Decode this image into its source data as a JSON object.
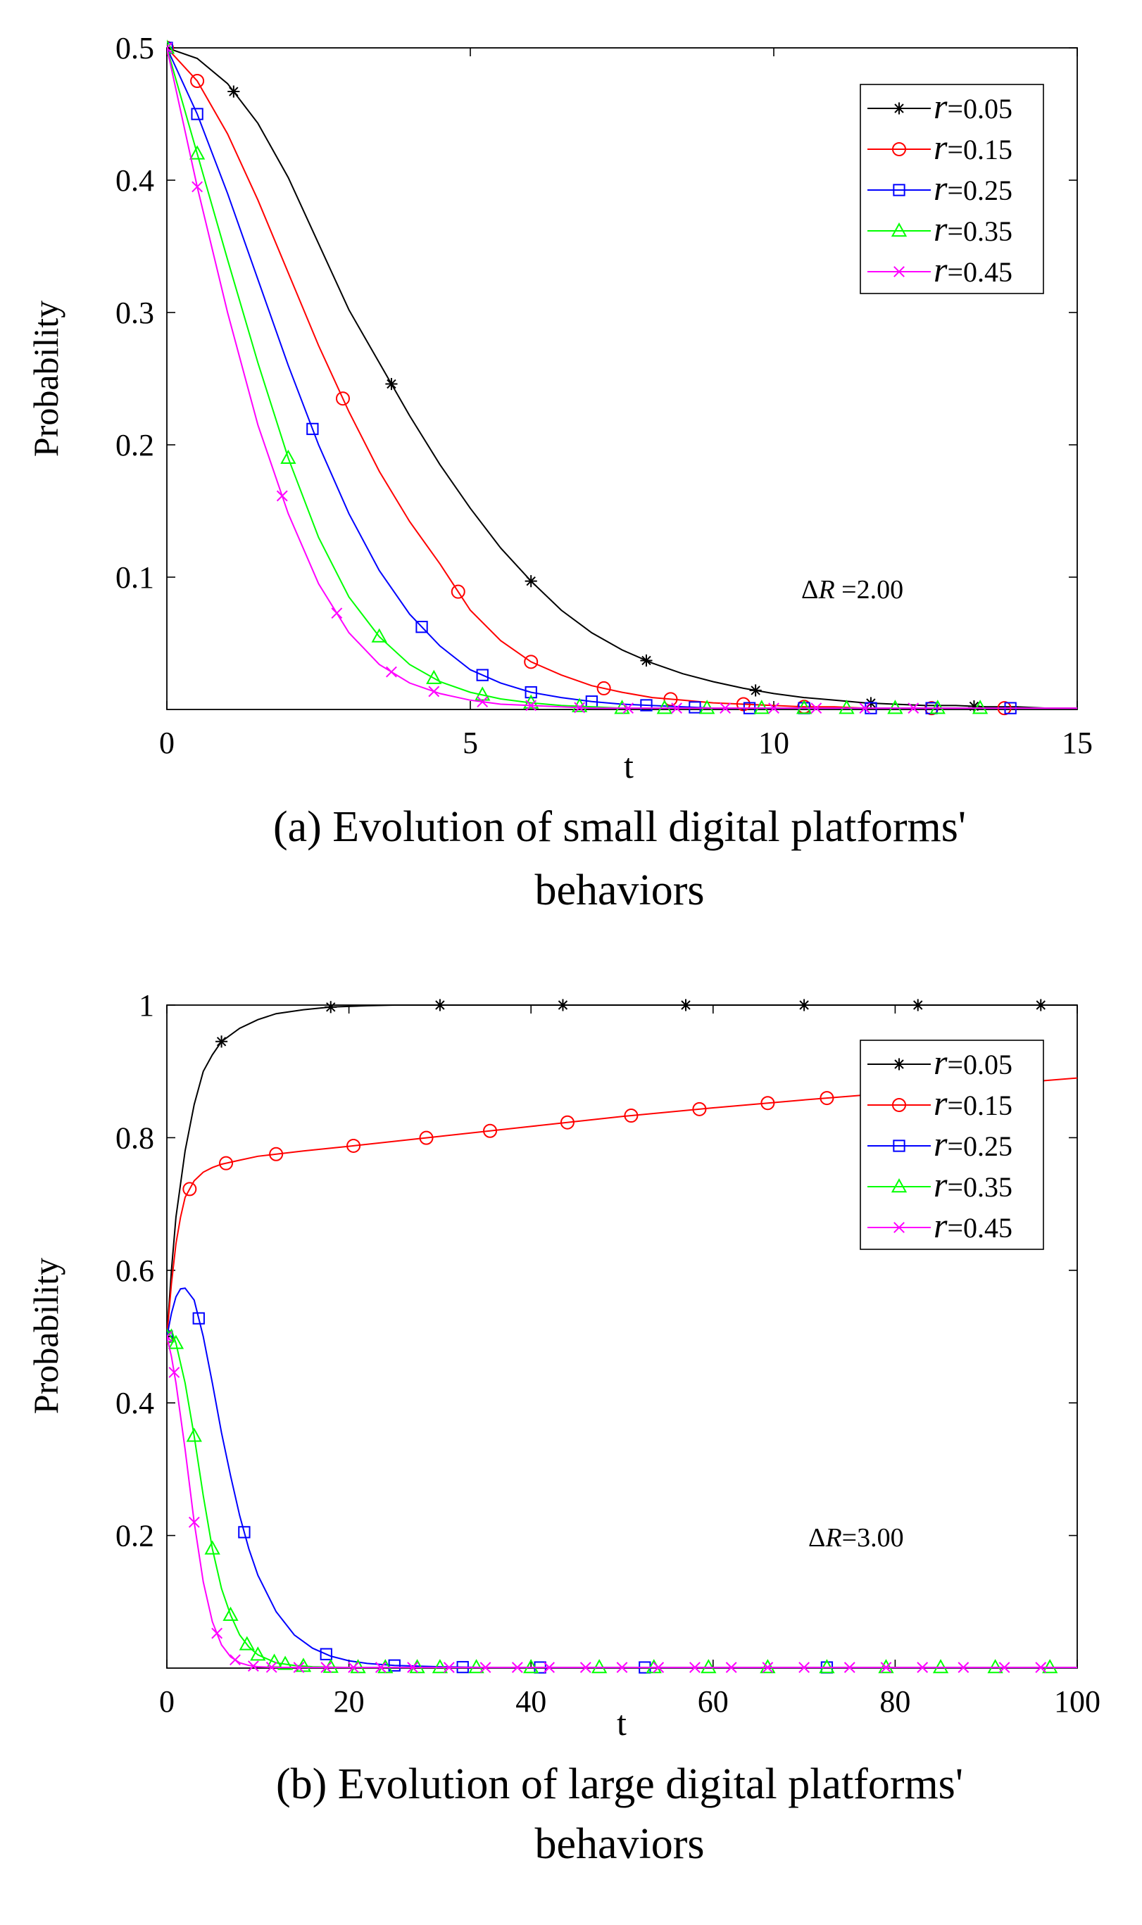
{
  "chart_data": [
    {
      "type": "line",
      "panel_id": "a",
      "caption": [
        "(a) Evolution of small digital platforms'",
        "behaviors"
      ],
      "xlabel": "t",
      "ylabel": "Probability",
      "xlim": [
        0,
        15
      ],
      "ylim": [
        0,
        0.5
      ],
      "xticks": [
        0,
        5,
        10,
        15
      ],
      "yticks": [
        0.1,
        0.2,
        0.3,
        0.4,
        0.5
      ],
      "annotation": {
        "delta": "Δ",
        "var": "R",
        "value": " =2.00"
      },
      "legend_position": "top-right",
      "series": [
        {
          "name": "r=0.05",
          "param": "r",
          "value": "=0.05",
          "color": "#000000",
          "marker": "asterisk",
          "x": [
            0,
            0.5,
            1,
            1.5,
            2,
            2.5,
            3,
            3.5,
            4,
            4.5,
            5,
            5.5,
            6,
            6.5,
            7,
            7.5,
            8,
            8.5,
            9,
            9.5,
            10,
            10.5,
            11,
            11.5,
            12,
            12.5,
            13,
            13.5,
            14,
            14.5,
            15
          ],
          "y": [
            0.5,
            0.492,
            0.473,
            0.443,
            0.402,
            0.352,
            0.302,
            0.262,
            0.222,
            0.185,
            0.152,
            0.122,
            0.097,
            0.075,
            0.058,
            0.045,
            0.035,
            0.027,
            0.021,
            0.016,
            0.012,
            0.009,
            0.007,
            0.005,
            0.004,
            0.003,
            0.003,
            0.002,
            0.002,
            0.001,
            0.001
          ],
          "marker_x": [
            0,
            1.1,
            3.7,
            6.0,
            7.9,
            9.7,
            11.6,
            13.3
          ]
        },
        {
          "name": "r=0.15",
          "param": "r",
          "value": "=0.15",
          "color": "#ff0000",
          "marker": "circle",
          "x": [
            0,
            0.5,
            1,
            1.5,
            2,
            2.5,
            3,
            3.5,
            4,
            4.5,
            5,
            5.5,
            6,
            6.5,
            7,
            7.5,
            8,
            8.5,
            9,
            9.5,
            10,
            10.5,
            11,
            11.5,
            12,
            12.5,
            13,
            13.5,
            14,
            14.5,
            15
          ],
          "y": [
            0.5,
            0.475,
            0.435,
            0.385,
            0.33,
            0.275,
            0.225,
            0.18,
            0.142,
            0.11,
            0.075,
            0.052,
            0.036,
            0.026,
            0.018,
            0.013,
            0.009,
            0.007,
            0.005,
            0.004,
            0.003,
            0.002,
            0.002,
            0.001,
            0.001,
            0.001,
            0.001,
            0.001,
            0.001,
            0.001,
            0.001
          ],
          "marker_x": [
            0,
            0.5,
            2.9,
            4.8,
            6.0,
            7.2,
            8.3,
            9.5,
            10.5,
            12.6,
            13.8
          ]
        },
        {
          "name": "r=0.25",
          "param": "r",
          "value": "=0.25",
          "color": "#0000ff",
          "marker": "square",
          "x": [
            0,
            0.5,
            1,
            1.5,
            2,
            2.5,
            3,
            3.5,
            4,
            4.5,
            5,
            5.5,
            6,
            6.5,
            7,
            7.5,
            8,
            8.5,
            9,
            9.5,
            10,
            10.5,
            11,
            11.5,
            12,
            12.5,
            13,
            13.5,
            14,
            14.5,
            15
          ],
          "y": [
            0.5,
            0.45,
            0.39,
            0.325,
            0.26,
            0.2,
            0.148,
            0.105,
            0.072,
            0.048,
            0.03,
            0.02,
            0.013,
            0.009,
            0.006,
            0.004,
            0.003,
            0.002,
            0.001,
            0.001,
            0.001,
            0.001,
            0.001,
            0.001,
            0.001,
            0.001,
            0.001,
            0.001,
            0.001,
            0.001,
            0.001
          ],
          "marker_x": [
            0,
            0.5,
            2.4,
            4.2,
            5.2,
            6.0,
            7.0,
            7.9,
            8.7,
            9.6,
            10.5,
            11.6,
            12.6,
            13.9
          ]
        },
        {
          "name": "r=0.35",
          "param": "r",
          "value": "=0.35",
          "color": "#00ff00",
          "marker": "triangle",
          "x": [
            0,
            0.5,
            1,
            1.5,
            2,
            2.5,
            3,
            3.5,
            4,
            4.5,
            5,
            5.5,
            6,
            6.5,
            7,
            7.5,
            8,
            8.5,
            9,
            9.5,
            10,
            10.5,
            11,
            11.5,
            12,
            12.5,
            13,
            13.5,
            14,
            14.5,
            15
          ],
          "y": [
            0.5,
            0.42,
            0.34,
            0.262,
            0.19,
            0.13,
            0.085,
            0.055,
            0.034,
            0.021,
            0.013,
            0.008,
            0.005,
            0.003,
            0.002,
            0.001,
            0.001,
            0.001,
            0.001,
            0.001,
            0.001,
            0.001,
            0.001,
            0.001,
            0.001,
            0.001,
            0.001,
            0.001,
            0.001,
            0.001,
            0.001
          ],
          "marker_x": [
            0,
            0.5,
            2.0,
            3.5,
            4.4,
            5.2,
            6.0,
            6.8,
            7.5,
            8.2,
            8.9,
            9.8,
            10.5,
            11.2,
            12.0,
            12.7,
            13.4
          ]
        },
        {
          "name": "r=0.45",
          "param": "r",
          "value": "=0.45",
          "color": "#ff00ff",
          "marker": "cross",
          "x": [
            0,
            0.5,
            1,
            1.5,
            2,
            2.5,
            3,
            3.5,
            4,
            4.5,
            5,
            5.5,
            6,
            6.5,
            7,
            7.5,
            8,
            8.5,
            9,
            9.5,
            10,
            10.5,
            11,
            11.5,
            12,
            12.5,
            13,
            13.5,
            14,
            14.5,
            15
          ],
          "y": [
            0.5,
            0.395,
            0.3,
            0.215,
            0.148,
            0.095,
            0.058,
            0.034,
            0.02,
            0.012,
            0.007,
            0.004,
            0.003,
            0.002,
            0.001,
            0.001,
            0.001,
            0.001,
            0.001,
            0.001,
            0.001,
            0.001,
            0.001,
            0.001,
            0.001,
            0.001,
            0.001,
            0.001,
            0.001,
            0.001,
            0.001
          ],
          "marker_x": [
            0,
            0.5,
            1.9,
            2.8,
            3.7,
            4.4,
            5.2,
            6.0,
            6.8,
            7.6,
            8.4,
            9.2,
            10.0,
            10.7,
            11.5,
            12.3
          ]
        }
      ]
    },
    {
      "type": "line",
      "panel_id": "b",
      "caption": [
        "(b) Evolution of large digital platforms'",
        "behaviors"
      ],
      "xlabel": "t",
      "ylabel": "Probability",
      "xlim": [
        0,
        100
      ],
      "ylim": [
        0,
        1
      ],
      "xticks": [
        0,
        20,
        40,
        60,
        80,
        100
      ],
      "yticks": [
        0.2,
        0.4,
        0.6,
        0.8,
        1
      ],
      "annotation": {
        "delta": "Δ",
        "var": "R",
        "value": "=3.00"
      },
      "legend_position": "top-right",
      "series": [
        {
          "name": "r=0.05",
          "param": "r",
          "value": "=0.05",
          "color": "#000000",
          "marker": "asterisk",
          "x": [
            0,
            0.5,
            1,
            2,
            3,
            4,
            5,
            6,
            8,
            10,
            12,
            15,
            18,
            22,
            25,
            30,
            40,
            50,
            60,
            70,
            80,
            90,
            100
          ],
          "y": [
            0.5,
            0.6,
            0.68,
            0.78,
            0.85,
            0.9,
            0.925,
            0.945,
            0.965,
            0.978,
            0.987,
            0.993,
            0.997,
            0.999,
            1,
            1,
            1,
            1,
            1,
            1,
            1,
            1,
            1
          ],
          "marker_x": [
            0,
            6,
            18,
            30,
            43.5,
            57,
            70,
            82.5,
            96
          ]
        },
        {
          "name": "r=0.15",
          "param": "r",
          "value": "=0.15",
          "color": "#ff0000",
          "marker": "circle",
          "x": [
            0,
            0.5,
            1,
            1.5,
            2,
            3,
            4,
            5,
            6,
            8,
            10,
            15,
            20,
            30,
            40,
            50,
            60,
            70,
            80,
            90,
            100
          ],
          "y": [
            0.5,
            0.58,
            0.64,
            0.68,
            0.71,
            0.735,
            0.748,
            0.755,
            0.76,
            0.766,
            0.772,
            0.78,
            0.787,
            0.802,
            0.817,
            0.832,
            0.845,
            0.857,
            0.868,
            0.879,
            0.89
          ],
          "marker_x": [
            0,
            2.5,
            6.5,
            12,
            20.5,
            28.5,
            35.5,
            44,
            51,
            58.5,
            66,
            72.5,
            79,
            85
          ]
        },
        {
          "name": "r=0.25",
          "param": "r",
          "value": "=0.25",
          "color": "#0000ff",
          "marker": "square",
          "x": [
            0,
            0.5,
            1,
            1.5,
            2,
            3,
            4,
            5,
            6,
            7,
            8,
            9,
            10,
            12,
            14,
            16,
            18,
            20,
            22,
            25,
            30,
            35,
            40,
            60,
            80,
            100
          ],
          "y": [
            0.5,
            0.535,
            0.56,
            0.572,
            0.573,
            0.555,
            0.5,
            0.43,
            0.355,
            0.29,
            0.23,
            0.18,
            0.14,
            0.085,
            0.05,
            0.03,
            0.018,
            0.011,
            0.007,
            0.004,
            0.002,
            0.001,
            0.001,
            0.001,
            0.001,
            0.001
          ],
          "marker_x": [
            0,
            3.5,
            8.5,
            17.5,
            25,
            32.5,
            41,
            52.5,
            72.5
          ]
        },
        {
          "name": "r=0.35",
          "param": "r",
          "value": "=0.35",
          "color": "#00ff00",
          "marker": "triangle",
          "x": [
            0,
            0.5,
            1,
            2,
            3,
            4,
            5,
            6,
            7,
            8,
            9,
            10,
            12,
            14,
            16,
            20,
            25,
            30,
            40,
            60,
            80,
            100
          ],
          "y": [
            0.5,
            0.51,
            0.49,
            0.43,
            0.35,
            0.26,
            0.18,
            0.12,
            0.08,
            0.05,
            0.032,
            0.02,
            0.008,
            0.004,
            0.002,
            0.001,
            0.001,
            0.001,
            0.001,
            0.001,
            0.001,
            0.001
          ],
          "marker_x": [
            0,
            1,
            3,
            5,
            7,
            8.8,
            10,
            11.8,
            13,
            15,
            18,
            21,
            24,
            27.5,
            30,
            34,
            40,
            47.5,
            53.5,
            59.5,
            66,
            72.5,
            79,
            85,
            91,
            97
          ]
        },
        {
          "name": "r=0.45",
          "param": "r",
          "value": "=0.45",
          "color": "#ff00ff",
          "marker": "cross",
          "x": [
            0,
            0.5,
            1,
            2,
            3,
            4,
            5,
            6,
            7,
            8,
            9,
            10,
            12,
            15,
            20,
            30,
            40,
            60,
            80,
            100
          ],
          "y": [
            0.5,
            0.47,
            0.43,
            0.33,
            0.22,
            0.13,
            0.07,
            0.035,
            0.017,
            0.008,
            0.004,
            0.002,
            0.001,
            0.001,
            0.001,
            0.001,
            0.001,
            0.001,
            0.001,
            0.001
          ],
          "marker_x": [
            0,
            0.8,
            3,
            5.5,
            7.5,
            9.5,
            11.5,
            14.5,
            17.5,
            20.5,
            23.5,
            27,
            31,
            35,
            38.5,
            42,
            46,
            50,
            54,
            58,
            62,
            66,
            70,
            75,
            79,
            83,
            87.5,
            92,
            96
          ]
        }
      ]
    }
  ]
}
